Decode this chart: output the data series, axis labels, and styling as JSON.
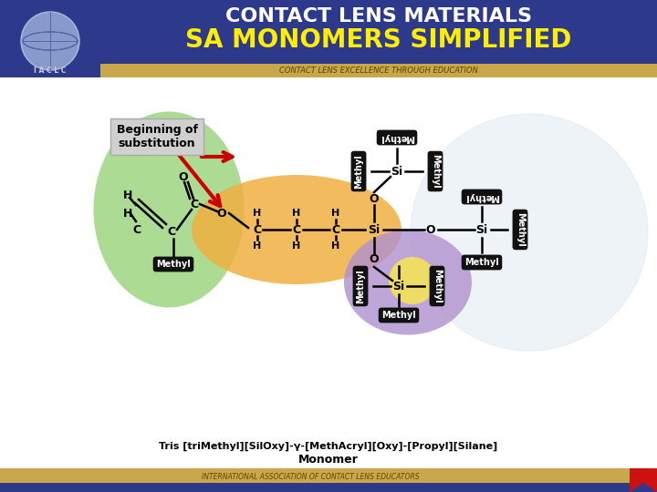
{
  "title1": "CONTACT LENS MATERIALS",
  "title2": "SA MONOMERS SIMPLIFIED",
  "subtitle": "CONTACT LENS EXCELLENCE THROUGH EDUCATION",
  "footer": "INTERNATIONAL ASSOCIATION OF CONTACT LENS EDUCATORS",
  "monomer_label": "Tris [triMethyl][SilOxy]-γ-[MethAcryl][Oxy]-[Propyl][Silane]",
  "monomer_sub": "Monomer",
  "beginning_label": "Beginning of\nsubstitution",
  "header_bg": "#2d3a8c",
  "header_fg_white": "#ffffff",
  "header_fg_yellow": "#ffee00",
  "gold_bar": "#c8a84b",
  "footer_bg": "#c8a84b",
  "footer_bar": "#2d3a8c",
  "body_bg": "#ffffff",
  "green_ellipse": "#90d070",
  "purple_ellipse": "#b090d0",
  "orange_ellipse": "#f0b040",
  "yellow_center": "#f0e060",
  "black_pill": "#111111",
  "pill_text": "#ffffff",
  "red_arrow": "#cc0000",
  "gray_box": "#d0d0d0"
}
